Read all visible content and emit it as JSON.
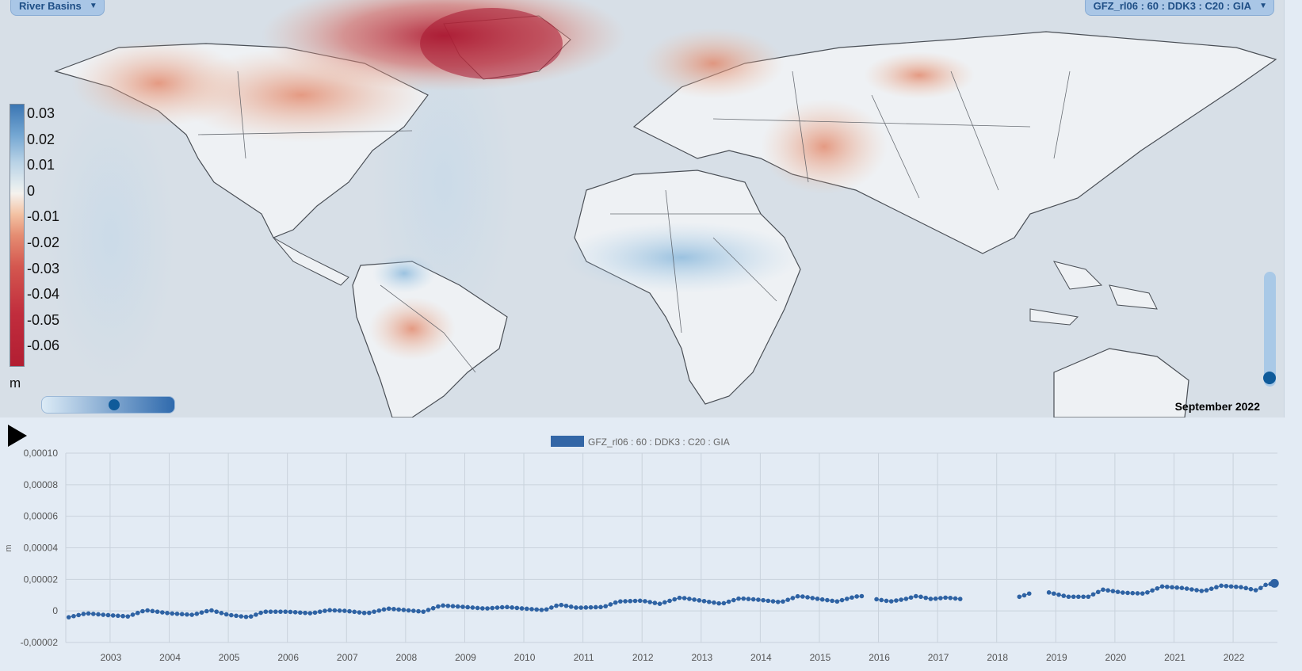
{
  "layer_dropdown": {
    "label": "River Basins"
  },
  "dataset_dropdown": {
    "label": "GFZ_rl06 : 60 : DDK3 : C20 : GIA"
  },
  "legend": {
    "labels": [
      "0.03",
      "0.02",
      "0.01",
      "0",
      "-0.01",
      "-0.02",
      "-0.03",
      "-0.04",
      "-0.05",
      "-0.06"
    ],
    "unit": "m"
  },
  "opacity_slider": {
    "value": 0.56
  },
  "time_slider": {
    "value": 1.0
  },
  "date_label": "September 2022",
  "icons": {
    "play": "play-icon"
  },
  "chart_data": {
    "type": "line",
    "legend": "GFZ_rl06 : 60 : DDK3 : C20 : GIA",
    "ylabel": "m",
    "ylim": [
      -2e-05,
      0.0001
    ],
    "yticks": [
      "0,00010",
      "0,00008",
      "0,00006",
      "0,00004",
      "0,00002",
      "0",
      "-0,00002"
    ],
    "xticks": [
      "2003",
      "2004",
      "2005",
      "2006",
      "2007",
      "2008",
      "2009",
      "2010",
      "2011",
      "2012",
      "2013",
      "2014",
      "2015",
      "2016",
      "2017",
      "2018",
      "2019",
      "2020",
      "2021",
      "2022"
    ],
    "xlim": [
      2002.25,
      2022.75
    ],
    "grid": true,
    "anchors": [
      [
        2002.3,
        -4e-06
      ],
      [
        2002.6,
        -1.5e-06
      ],
      [
        2002.9,
        -2.5e-06
      ],
      [
        2003.3,
        -3.5e-06
      ],
      [
        2003.6,
        5e-07
      ],
      [
        2004.0,
        -1.5e-06
      ],
      [
        2004.4,
        -2.5e-06
      ],
      [
        2004.7,
        5e-07
      ],
      [
        2005.0,
        -2.5e-06
      ],
      [
        2005.35,
        -4e-06
      ],
      [
        2005.6,
        -5e-07
      ],
      [
        2006.0,
        -5e-07
      ],
      [
        2006.4,
        -1.5e-06
      ],
      [
        2006.7,
        5e-07
      ],
      [
        2007.0,
        0.0
      ],
      [
        2007.35,
        -1.5e-06
      ],
      [
        2007.7,
        1.5e-06
      ],
      [
        2008.0,
        5e-07
      ],
      [
        2008.3,
        -5e-07
      ],
      [
        2008.6,
        3.5e-06
      ],
      [
        2009.0,
        2.5e-06
      ],
      [
        2009.35,
        1.5e-06
      ],
      [
        2009.7,
        2.5e-06
      ],
      [
        2010.0,
        1.5e-06
      ],
      [
        2010.35,
        5e-07
      ],
      [
        2010.6,
        4e-06
      ],
      [
        2010.9,
        2e-06
      ],
      [
        2011.35,
        2.5e-06
      ],
      [
        2011.6,
        6e-06
      ],
      [
        2012.0,
        6.5e-06
      ],
      [
        2012.3,
        4.5e-06
      ],
      [
        2012.65,
        8.5e-06
      ],
      [
        2013.0,
        6.5e-06
      ],
      [
        2013.35,
        4.5e-06
      ],
      [
        2013.65,
        8e-06
      ],
      [
        2014.0,
        7e-06
      ],
      [
        2014.35,
        5.5e-06
      ],
      [
        2014.65,
        9.5e-06
      ],
      [
        2015.0,
        7.5e-06
      ],
      [
        2015.3,
        6e-06
      ],
      [
        2015.6,
        9e-06
      ],
      [
        2015.7,
        9.5e-06
      ],
      [
        2015.95,
        7.5e-06
      ],
      [
        2016.2,
        6e-06
      ],
      [
        2016.45,
        7.5e-06
      ],
      [
        2016.65,
        9.5e-06
      ],
      [
        2016.9,
        7.5e-06
      ],
      [
        2017.15,
        8.5e-06
      ],
      [
        2017.4,
        7.5e-06
      ],
      [
        2018.4,
        9e-06
      ],
      [
        2018.55,
        1.1e-05
      ],
      [
        2018.85,
        1.2e-05
      ],
      [
        2019.2,
        9e-06
      ],
      [
        2019.55,
        9e-06
      ],
      [
        2019.8,
        1.35e-05
      ],
      [
        2020.15,
        1.15e-05
      ],
      [
        2020.5,
        1.1e-05
      ],
      [
        2020.8,
        1.55e-05
      ],
      [
        2021.15,
        1.45e-05
      ],
      [
        2021.5,
        1.25e-05
      ],
      [
        2021.8,
        1.6e-05
      ],
      [
        2022.15,
        1.5e-05
      ],
      [
        2022.4,
        1.3e-05
      ],
      [
        2022.55,
        1.65e-05
      ],
      [
        2022.7,
        1.75e-05
      ]
    ],
    "gaps": [
      [
        2015.72,
        2015.9
      ],
      [
        2017.45,
        2018.35
      ],
      [
        2018.6,
        2018.8
      ]
    ],
    "highlight": [
      2022.7,
      1.75e-05
    ]
  }
}
